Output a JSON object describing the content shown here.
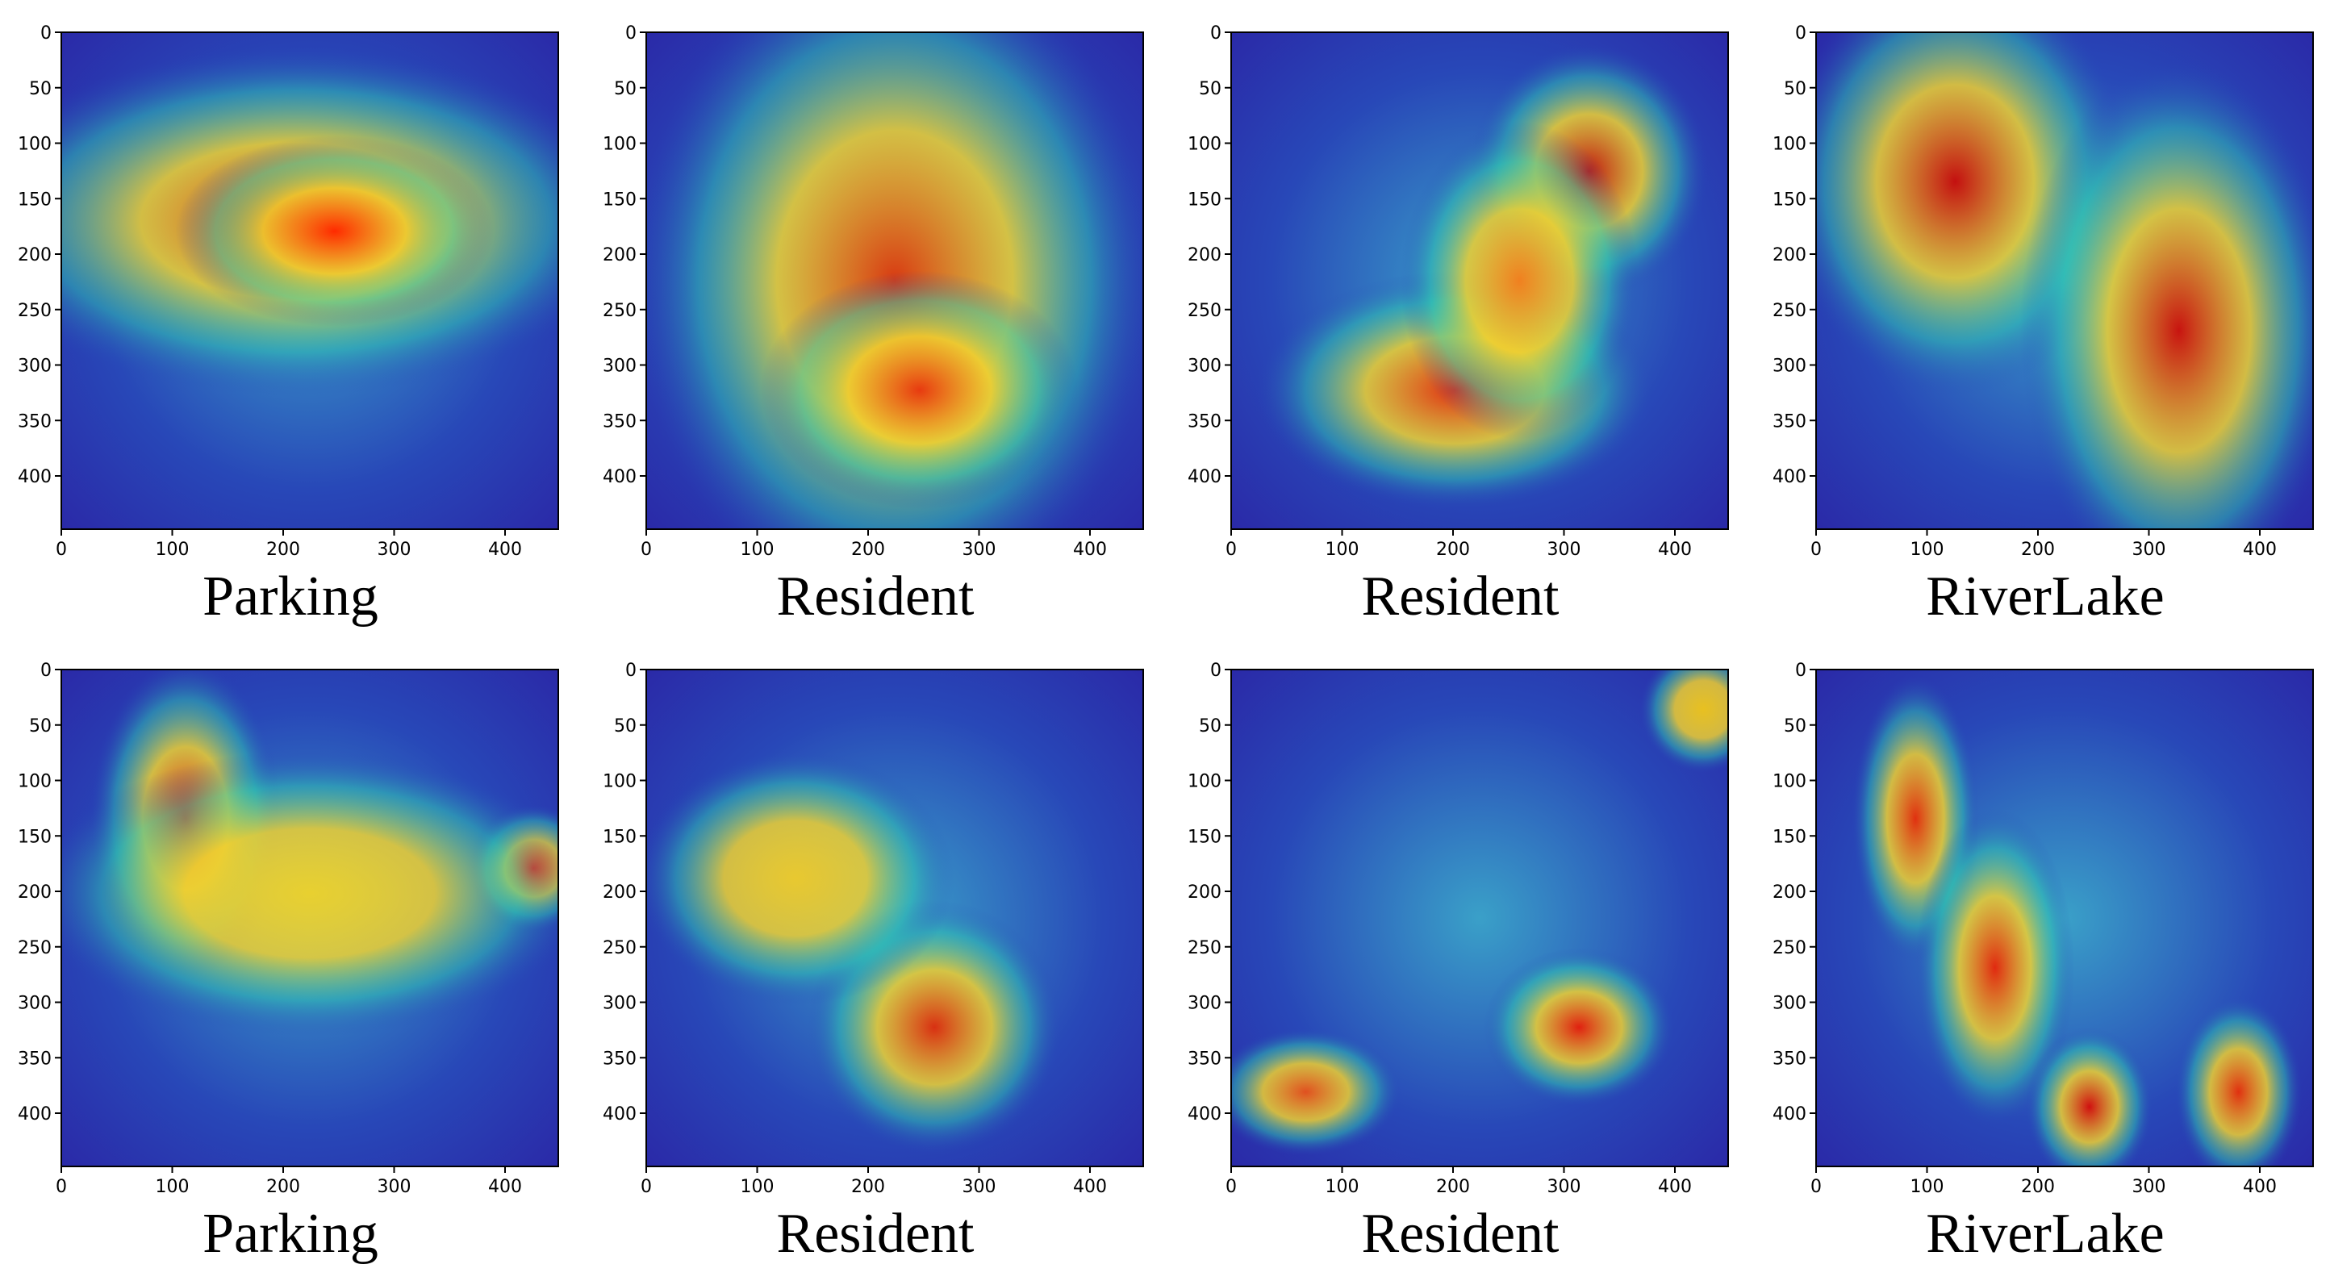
{
  "figure": {
    "panels": [
      {
        "caption": "Parking",
        "heatmap": {
          "cmap": "jet",
          "peak": 0.92
        }
      },
      {
        "caption": "Resident",
        "heatmap": {
          "cmap": "jet",
          "peak": 0.9
        }
      },
      {
        "caption": "Resident",
        "heatmap": {
          "cmap": "jet",
          "peak": 0.95
        }
      },
      {
        "caption": "RiverLake",
        "heatmap": {
          "cmap": "jet",
          "peak": 0.97
        }
      },
      {
        "caption": "Parking",
        "heatmap": {
          "cmap": "jet",
          "peak": 0.95
        }
      },
      {
        "caption": "Resident",
        "heatmap": {
          "cmap": "jet",
          "peak": 0.9
        }
      },
      {
        "caption": "Resident",
        "heatmap": {
          "cmap": "jet",
          "peak": 0.9
        }
      },
      {
        "caption": "RiverLake",
        "heatmap": {
          "cmap": "jet",
          "peak": 0.9
        }
      }
    ],
    "x_ticks": [
      "0",
      "100",
      "200",
      "300",
      "400"
    ],
    "y_ticks": [
      "0",
      "50",
      "100",
      "150",
      "200",
      "250",
      "300",
      "350",
      "400"
    ],
    "axis_range": [
      0,
      448
    ],
    "colors": {
      "overlay_low": "#2a2aa8",
      "overlay_high": "#d40000"
    }
  }
}
